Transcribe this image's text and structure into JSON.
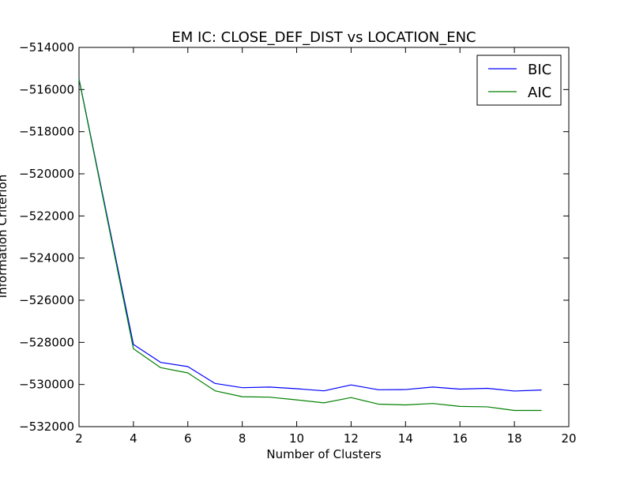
{
  "chart_data": {
    "type": "line",
    "title": "EM IC: CLOSE_DEF_DIST vs LOCATION_ENC",
    "xlabel": "Number of Clusters",
    "ylabel": "Information Criterion",
    "xlim": [
      2,
      20
    ],
    "ylim": [
      -532000,
      -514000
    ],
    "xticks": [
      2,
      4,
      6,
      8,
      10,
      12,
      14,
      16,
      18,
      20
    ],
    "yticks": [
      -514000,
      -516000,
      -518000,
      -520000,
      -522000,
      -524000,
      -526000,
      -528000,
      -530000,
      -532000
    ],
    "ytick_labels": [
      "−514000",
      "−516000",
      "−518000",
      "−520000",
      "−522000",
      "−524000",
      "−526000",
      "−528000",
      "−530000",
      "−532000"
    ],
    "grid": false,
    "legend_position": "top-right",
    "x": [
      2,
      3,
      4,
      5,
      6,
      7,
      8,
      9,
      10,
      11,
      12,
      13,
      14,
      15,
      16,
      17,
      18,
      19
    ],
    "series": [
      {
        "name": "BIC",
        "color": "#0000ff",
        "values": [
          -515500,
          -521800,
          -528100,
          -528950,
          -529150,
          -529950,
          -530150,
          -530120,
          -530200,
          -530300,
          -530020,
          -530250,
          -530240,
          -530120,
          -530220,
          -530180,
          -530310,
          -530260
        ]
      },
      {
        "name": "AIC",
        "color": "#008000",
        "values": [
          -515500,
          -521900,
          -528300,
          -529200,
          -529450,
          -530300,
          -530580,
          -530600,
          -530730,
          -530870,
          -530620,
          -530930,
          -530970,
          -530900,
          -531040,
          -531060,
          -531230,
          -531230
        ]
      }
    ]
  }
}
